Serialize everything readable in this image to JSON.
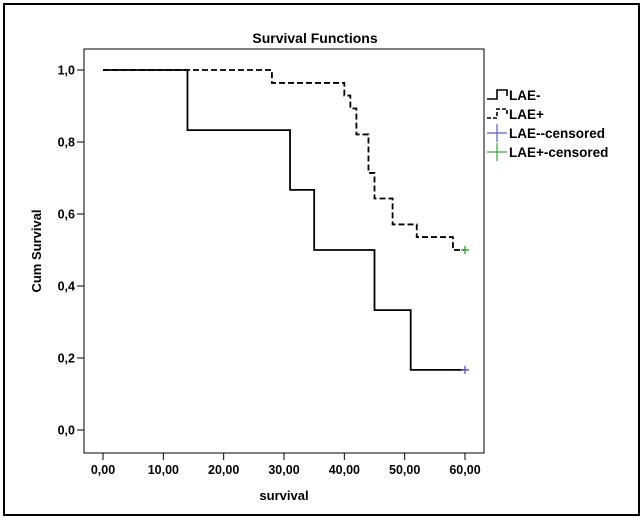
{
  "chart_data": {
    "type": "line",
    "title": "Survival Functions",
    "xlabel": "survival",
    "ylabel": "Cum Survival",
    "xlim": [
      0,
      60
    ],
    "ylim": [
      0,
      1
    ],
    "x_ticks": [
      "0,00",
      "10,00",
      "20,00",
      "30,00",
      "40,00",
      "50,00",
      "60,00"
    ],
    "y_ticks": [
      "0,0",
      "0,2",
      "0,4",
      "0,6",
      "0,8",
      "1,0"
    ],
    "grid": false,
    "legend_position": "right",
    "series": [
      {
        "name": "LAE-",
        "style": "solid-step",
        "color": "#000000",
        "x": [
          0,
          14,
          31,
          35,
          45,
          51,
          60
        ],
        "y": [
          1.0,
          0.833,
          0.667,
          0.5,
          0.333,
          0.167,
          0.167
        ]
      },
      {
        "name": "LAE+",
        "style": "dashed-step",
        "color": "#000000",
        "x": [
          0,
          28,
          40,
          41,
          42,
          44,
          45,
          48,
          52,
          58,
          60
        ],
        "y": [
          1.0,
          0.964,
          0.929,
          0.893,
          0.821,
          0.714,
          0.643,
          0.571,
          0.536,
          0.5,
          0.5
        ]
      }
    ],
    "censored": [
      {
        "name": "LAE--censored",
        "color": "#5b5bc8",
        "x": [
          60
        ],
        "y": [
          0.167
        ]
      },
      {
        "name": "LAE+-censored",
        "color": "#3aa63a",
        "x": [
          60
        ],
        "y": [
          0.5
        ]
      }
    ]
  }
}
